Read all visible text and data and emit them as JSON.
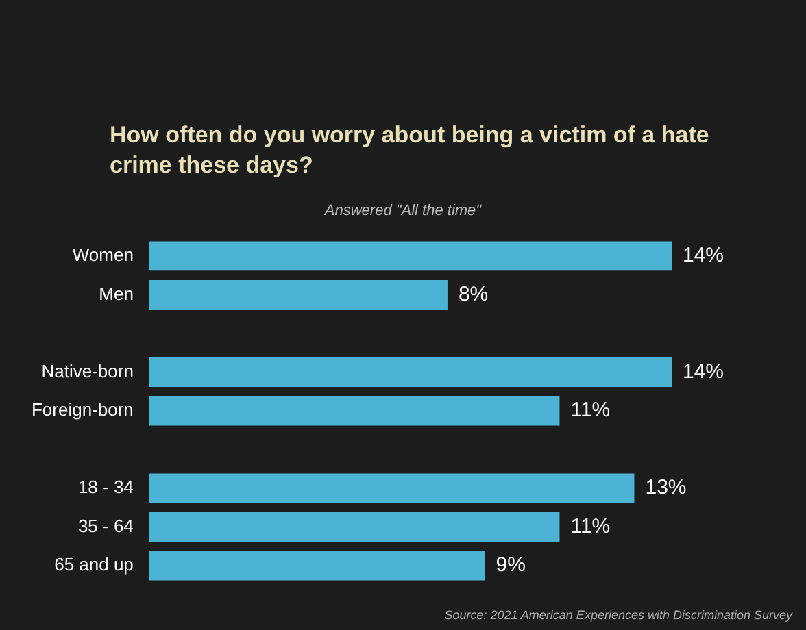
{
  "chart_data": {
    "type": "bar",
    "orientation": "horizontal",
    "title": "How often do you worry about being a victim of a hate crime these days?",
    "subtitle": "Answered \"All the time\"",
    "categories": [
      "Women",
      "Men",
      null,
      "Native-born",
      "Foreign-born",
      null,
      "18 - 34",
      "35 - 64",
      "65 and up"
    ],
    "values": [
      14,
      8,
      null,
      14,
      11,
      null,
      13,
      11,
      9
    ],
    "value_labels": [
      "14%",
      "8%",
      null,
      "14%",
      "11%",
      null,
      "13%",
      "11%",
      "9%"
    ],
    "color": "#4bb4d4",
    "legend": false,
    "tick_labels": "y",
    "annotations": [
      "Source: 2021 American Experiences with Discrimination Survey"
    ]
  }
}
